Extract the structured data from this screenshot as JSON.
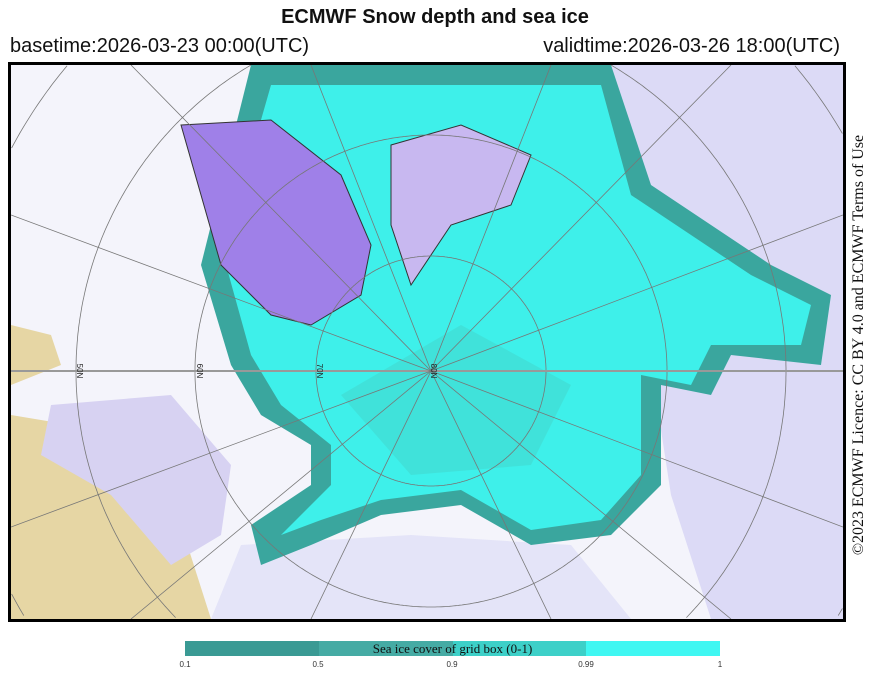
{
  "title": "ECMWF Snow depth and sea ice",
  "basetime": "basetime:2026-03-23 00:00(UTC)",
  "validtime": "validtime:2026-03-26 18:00(UTC)",
  "licence": "©2023 ECMWF Licence: CC BY 4.0 and ECMWF Terms of Use",
  "map": {
    "projection": "north-polar-stereographic",
    "latitude_labels": [
      "50N",
      "60N",
      "70N",
      "80N"
    ],
    "colors": {
      "sea_ice": "#3ff0ec",
      "greenland": "#9f7fe8",
      "snow_land": "#d8d8f5",
      "bare_land": "#e8d8a8"
    }
  },
  "colorbar": {
    "label": "Sea ice cover of grid box (0-1)",
    "ticks": [
      "0.1",
      "0.5",
      "0.9",
      "0.99",
      "1"
    ],
    "colors": [
      "#3a9a94",
      "#45aba4",
      "#3dd0c8",
      "#40f7f2"
    ]
  }
}
